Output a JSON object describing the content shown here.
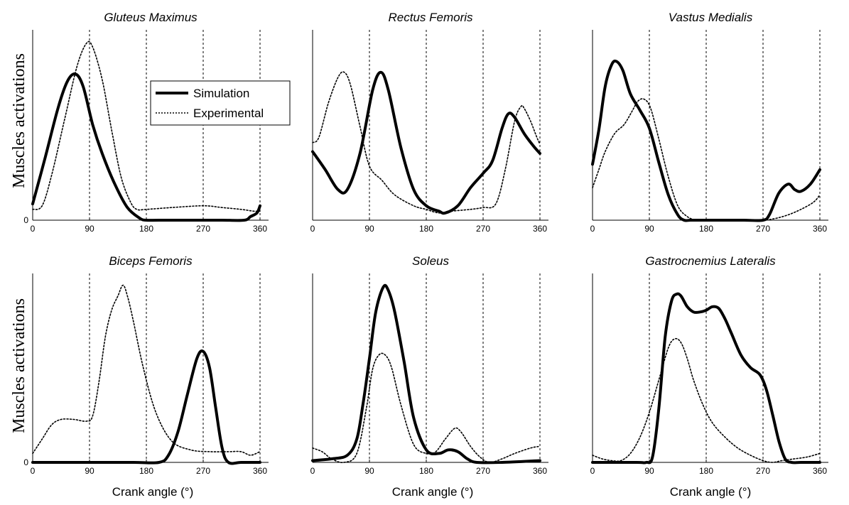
{
  "figure": {
    "ylabel": "Muscles activations",
    "xlabel": "Crank angle (°)",
    "legend": {
      "placement": "inside the top-left panel, right of the peak",
      "entries": [
        {
          "name": "Simulation",
          "style": "thick-solid"
        },
        {
          "name": "Experimental",
          "style": "dotted"
        }
      ]
    }
  },
  "chart_data": [
    {
      "type": "line",
      "title": "Gluteus Maximus",
      "xlabel": "",
      "ylabel": "Muscles activations",
      "xlim": [
        0,
        360
      ],
      "ylim": [
        0,
        1
      ],
      "xticks": [
        0,
        90,
        180,
        270,
        360
      ],
      "yticks": [
        0
      ],
      "vlines": [
        90,
        180,
        270,
        360
      ],
      "grid": false,
      "series": [
        {
          "name": "Simulation",
          "style": "thick-solid",
          "x": [
            0,
            20,
            40,
            55,
            68,
            80,
            95,
            110,
            130,
            150,
            170,
            180,
            200,
            240,
            270,
            300,
            335,
            345,
            355,
            360
          ],
          "y": [
            0.09,
            0.35,
            0.62,
            0.77,
            0.81,
            0.74,
            0.53,
            0.37,
            0.2,
            0.07,
            0.01,
            0.0,
            0.0,
            0.0,
            0.0,
            0.0,
            0.0,
            0.02,
            0.04,
            0.08
          ]
        },
        {
          "name": "Experimental",
          "style": "dotted",
          "x": [
            0,
            15,
            30,
            50,
            70,
            85,
            95,
            110,
            125,
            140,
            155,
            165,
            180,
            220,
            270,
            300,
            330,
            350,
            360
          ],
          "y": [
            0.06,
            0.08,
            0.25,
            0.55,
            0.85,
            0.98,
            0.96,
            0.78,
            0.5,
            0.24,
            0.1,
            0.06,
            0.06,
            0.07,
            0.08,
            0.07,
            0.06,
            0.05,
            0.05
          ]
        }
      ]
    },
    {
      "type": "line",
      "title": "Rectus Femoris",
      "xlabel": "",
      "ylabel": "",
      "xlim": [
        0,
        360
      ],
      "ylim": [
        0,
        1
      ],
      "xticks": [
        0,
        90,
        180,
        270,
        360
      ],
      "yticks": [],
      "vlines": [
        90,
        180,
        270,
        360
      ],
      "grid": false,
      "series": [
        {
          "name": "Simulation",
          "style": "thick-solid",
          "x": [
            0,
            20,
            40,
            55,
            75,
            95,
            108,
            120,
            140,
            160,
            180,
            200,
            210,
            230,
            250,
            270,
            285,
            300,
            310,
            320,
            335,
            350,
            360
          ],
          "y": [
            0.38,
            0.28,
            0.17,
            0.17,
            0.37,
            0.72,
            0.82,
            0.72,
            0.4,
            0.17,
            0.08,
            0.05,
            0.04,
            0.08,
            0.18,
            0.26,
            0.33,
            0.51,
            0.59,
            0.57,
            0.48,
            0.41,
            0.37
          ]
        },
        {
          "name": "Experimental",
          "style": "dotted",
          "x": [
            0,
            10,
            25,
            40,
            50,
            60,
            75,
            90,
            110,
            130,
            160,
            180,
            200,
            220,
            250,
            270,
            290,
            305,
            320,
            330,
            335,
            345,
            355,
            360
          ],
          "y": [
            0.43,
            0.46,
            0.65,
            0.79,
            0.82,
            0.75,
            0.52,
            0.3,
            0.22,
            0.14,
            0.08,
            0.06,
            0.04,
            0.05,
            0.06,
            0.07,
            0.09,
            0.28,
            0.55,
            0.63,
            0.62,
            0.55,
            0.46,
            0.42
          ]
        }
      ]
    },
    {
      "type": "line",
      "title": "Vastus Medialis",
      "xlabel": "",
      "ylabel": "",
      "xlim": [
        0,
        360
      ],
      "ylim": [
        0,
        1
      ],
      "xticks": [
        0,
        90,
        180,
        270,
        360
      ],
      "yticks": [],
      "vlines": [
        90,
        180,
        270,
        360
      ],
      "grid": false,
      "series": [
        {
          "name": "Simulation",
          "style": "thick-solid",
          "x": [
            0,
            10,
            20,
            30,
            38,
            48,
            60,
            75,
            90,
            105,
            120,
            135,
            145,
            155,
            170,
            200,
            240,
            270,
            280,
            295,
            310,
            320,
            330,
            345,
            360
          ],
          "y": [
            0.31,
            0.5,
            0.74,
            0.86,
            0.88,
            0.83,
            0.7,
            0.61,
            0.51,
            0.32,
            0.14,
            0.03,
            0.0,
            0.0,
            0.0,
            0.0,
            0.0,
            0.0,
            0.03,
            0.15,
            0.2,
            0.17,
            0.16,
            0.2,
            0.28
          ]
        },
        {
          "name": "Experimental",
          "style": "dotted",
          "x": [
            0,
            10,
            20,
            35,
            50,
            62,
            72,
            82,
            92,
            105,
            120,
            135,
            150,
            165,
            180,
            200,
            240,
            270,
            290,
            310,
            330,
            350,
            360
          ],
          "y": [
            0.18,
            0.28,
            0.38,
            0.48,
            0.53,
            0.6,
            0.66,
            0.67,
            0.62,
            0.45,
            0.24,
            0.08,
            0.02,
            0.0,
            0.0,
            0.0,
            0.0,
            0.0,
            0.01,
            0.03,
            0.06,
            0.1,
            0.14
          ]
        }
      ]
    },
    {
      "type": "line",
      "title": "Biceps Femoris",
      "xlabel": "Crank angle (°)",
      "ylabel": "Muscles activations",
      "xlim": [
        0,
        360
      ],
      "ylim": [
        0,
        1
      ],
      "xticks": [
        0,
        90,
        180,
        270,
        360
      ],
      "yticks": [
        0
      ],
      "vlines": [
        90,
        180,
        270,
        360
      ],
      "grid": false,
      "series": [
        {
          "name": "Simulation",
          "style": "thick-solid",
          "x": [
            0,
            100,
            160,
            200,
            215,
            230,
            245,
            260,
            270,
            280,
            290,
            300,
            310,
            330,
            360
          ],
          "y": [
            0.0,
            0.0,
            0.0,
            0.0,
            0.04,
            0.17,
            0.38,
            0.58,
            0.62,
            0.53,
            0.3,
            0.08,
            0.0,
            0.0,
            0.0
          ]
        },
        {
          "name": "Experimental",
          "style": "dotted",
          "x": [
            0,
            15,
            30,
            45,
            65,
            85,
            95,
            105,
            115,
            125,
            135,
            143,
            150,
            160,
            175,
            195,
            220,
            250,
            280,
            310,
            330,
            345,
            360
          ],
          "y": [
            0.05,
            0.13,
            0.21,
            0.24,
            0.24,
            0.23,
            0.26,
            0.45,
            0.7,
            0.85,
            0.93,
            0.99,
            0.93,
            0.78,
            0.53,
            0.28,
            0.12,
            0.07,
            0.06,
            0.06,
            0.06,
            0.04,
            0.06
          ]
        }
      ]
    },
    {
      "type": "line",
      "title": "Soleus",
      "xlabel": "Crank angle (°)",
      "ylabel": "",
      "xlim": [
        0,
        360
      ],
      "ylim": [
        0,
        1
      ],
      "xticks": [
        0,
        90,
        180,
        270,
        360
      ],
      "yticks": [],
      "vlines": [
        90,
        180,
        270,
        360
      ],
      "grid": false,
      "series": [
        {
          "name": "Simulation",
          "style": "thick-solid",
          "x": [
            0,
            30,
            55,
            70,
            80,
            90,
            100,
            112,
            120,
            130,
            145,
            160,
            180,
            200,
            215,
            230,
            245,
            260,
            300,
            360
          ],
          "y": [
            0.01,
            0.02,
            0.04,
            0.13,
            0.33,
            0.58,
            0.84,
            0.98,
            0.96,
            0.84,
            0.56,
            0.25,
            0.07,
            0.05,
            0.07,
            0.06,
            0.02,
            0.0,
            0.0,
            0.01
          ]
        },
        {
          "name": "Experimental",
          "style": "dotted",
          "x": [
            0,
            15,
            30,
            50,
            70,
            85,
            95,
            105,
            115,
            125,
            140,
            160,
            180,
            195,
            210,
            225,
            235,
            250,
            265,
            280,
            300,
            320,
            345,
            360
          ],
          "y": [
            0.08,
            0.06,
            0.02,
            0.0,
            0.05,
            0.3,
            0.52,
            0.6,
            0.6,
            0.53,
            0.32,
            0.1,
            0.05,
            0.06,
            0.13,
            0.19,
            0.17,
            0.09,
            0.03,
            0.0,
            0.02,
            0.05,
            0.08,
            0.09
          ]
        }
      ]
    },
    {
      "type": "line",
      "title": "Gastrocnemius Lateralis",
      "xlabel": "Crank angle (°)",
      "ylabel": "",
      "xlim": [
        0,
        360
      ],
      "ylim": [
        0,
        1
      ],
      "xticks": [
        0,
        90,
        180,
        270,
        360
      ],
      "yticks": [],
      "vlines": [
        90,
        180,
        270,
        360
      ],
      "grid": false,
      "series": [
        {
          "name": "Simulation",
          "style": "thick-solid",
          "x": [
            0,
            70,
            85,
            95,
            105,
            115,
            125,
            133,
            140,
            150,
            160,
            170,
            180,
            190,
            200,
            210,
            220,
            235,
            250,
            265,
            275,
            285,
            295,
            305,
            315,
            330,
            360
          ],
          "y": [
            0.0,
            0.0,
            0.0,
            0.03,
            0.3,
            0.7,
            0.9,
            0.94,
            0.93,
            0.87,
            0.84,
            0.84,
            0.85,
            0.87,
            0.86,
            0.8,
            0.72,
            0.6,
            0.53,
            0.49,
            0.41,
            0.27,
            0.12,
            0.02,
            0.0,
            0.0,
            0.0
          ]
        },
        {
          "name": "Experimental",
          "style": "dotted",
          "x": [
            0,
            15,
            30,
            45,
            60,
            75,
            90,
            105,
            120,
            130,
            140,
            150,
            160,
            175,
            190,
            210,
            230,
            250,
            270,
            285,
            300,
            320,
            340,
            360
          ],
          "y": [
            0.04,
            0.02,
            0.01,
            0.01,
            0.05,
            0.14,
            0.28,
            0.46,
            0.64,
            0.69,
            0.67,
            0.58,
            0.46,
            0.32,
            0.22,
            0.14,
            0.08,
            0.04,
            0.01,
            0.0,
            0.01,
            0.02,
            0.03,
            0.05
          ]
        }
      ]
    }
  ]
}
